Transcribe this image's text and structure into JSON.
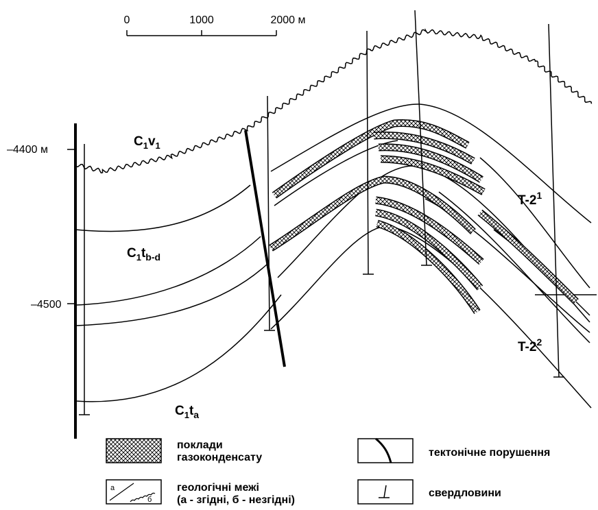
{
  "scale": {
    "labels": [
      "0",
      "1000",
      "2000 м"
    ]
  },
  "depth_labels": [
    "–4400 м",
    "–4500"
  ],
  "formations": [
    [
      "C",
      "1",
      "v",
      "1"
    ],
    [
      "C",
      "1",
      "t",
      "b-d"
    ],
    [
      "C",
      "1",
      "t",
      "a"
    ],
    [
      "T-2",
      "1"
    ],
    [
      "T-2",
      "2"
    ]
  ],
  "legend": [
    {
      "lines": [
        "поклади",
        "газоконденсату"
      ]
    },
    {
      "lines": [
        "тектонічне порушення"
      ]
    },
    {
      "lines": [
        "геологічні межі",
        "(а - згідні, б - незгідні)"
      ],
      "symbol_labels": [
        "а",
        "б"
      ]
    },
    {
      "lines": [
        "свердловини"
      ]
    }
  ]
}
